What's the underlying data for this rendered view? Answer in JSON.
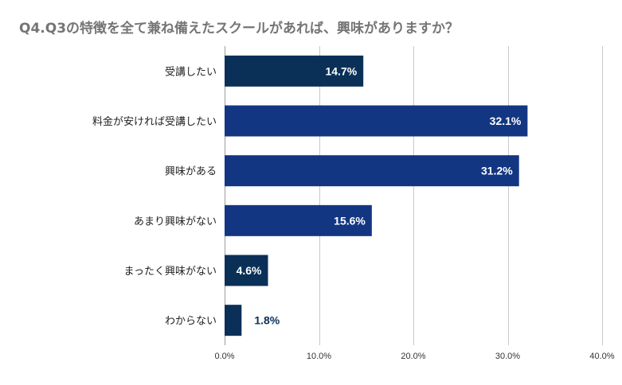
{
  "chart_data": {
    "type": "bar",
    "orientation": "horizontal",
    "title": "Q4.Q3の特徴を全て兼ね備えたスクールがあれば、興味がありますか？",
    "categories": [
      "受講したい",
      "料金が安ければ受講したい",
      "興味がある",
      "あまり興味がない",
      "まったく興味がない",
      "わからない"
    ],
    "values": [
      14.7,
      32.1,
      31.2,
      15.6,
      4.6,
      1.8
    ],
    "value_labels": [
      "14.7%",
      "32.1%",
      "31.2%",
      "15.6%",
      "4.6%",
      "1.8%"
    ],
    "bar_colors": [
      "#0a3058",
      "#133682",
      "#133682",
      "#133682",
      "#0a3058",
      "#0a3058"
    ],
    "xlim": [
      0,
      40
    ],
    "xticks": [
      0,
      10,
      20,
      30,
      40
    ],
    "xtick_labels": [
      "0.0%",
      "10.0%",
      "20.0%",
      "30.0%",
      "40.0%"
    ],
    "xlabel": "",
    "ylabel": "",
    "grid": "vertical",
    "legend": "none",
    "colors": {
      "title": "#757575",
      "grid": "#c8c8c8",
      "label_inside": "#ffffff",
      "label_outside": "#0a3058"
    }
  }
}
